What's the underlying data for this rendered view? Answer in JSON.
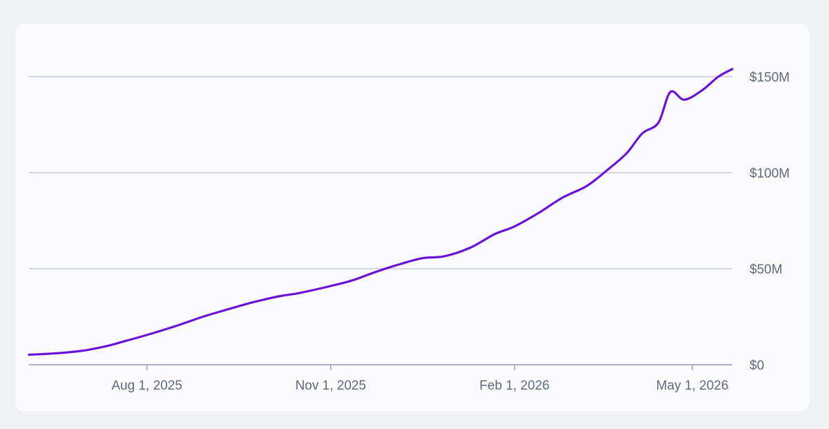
{
  "chart_data": {
    "type": "line",
    "title": "",
    "xlabel": "",
    "ylabel": "",
    "grid": true,
    "y_axis_position": "right",
    "ylim": [
      0,
      150000000
    ],
    "xlim": [
      "2025-06-03",
      "2026-05-21"
    ],
    "y_ticks": [
      {
        "value": 0,
        "label": "$0"
      },
      {
        "value": 50000000,
        "label": "$50M"
      },
      {
        "value": 100000000,
        "label": "$100M"
      },
      {
        "value": 150000000,
        "label": "$150M"
      }
    ],
    "x_ticks": [
      {
        "value": "2025-08-01",
        "label": "Aug 1, 2025"
      },
      {
        "value": "2025-11-01",
        "label": "Nov 1, 2025"
      },
      {
        "value": "2026-02-01",
        "label": "Feb 1, 2026"
      },
      {
        "value": "2026-05-01",
        "label": "May 1, 2026"
      }
    ],
    "series": [
      {
        "color": "#6a12d8",
        "points": [
          [
            "2025-06-03",
            5200000
          ],
          [
            "2025-06-17",
            6000000
          ],
          [
            "2025-06-29",
            7200000
          ],
          [
            "2025-07-11",
            9500000
          ],
          [
            "2025-07-20",
            12000000
          ],
          [
            "2025-08-01",
            15500000
          ],
          [
            "2025-08-15",
            20000000
          ],
          [
            "2025-08-29",
            25000000
          ],
          [
            "2025-09-11",
            29000000
          ],
          [
            "2025-09-23",
            32500000
          ],
          [
            "2025-10-06",
            35600000
          ],
          [
            "2025-10-17",
            37500000
          ],
          [
            "2025-11-01",
            41000000
          ],
          [
            "2025-11-12",
            44000000
          ],
          [
            "2025-11-24",
            48500000
          ],
          [
            "2025-12-06",
            52500000
          ],
          [
            "2025-12-17",
            55500000
          ],
          [
            "2025-12-28",
            56500000
          ],
          [
            "2026-01-10",
            61000000
          ],
          [
            "2026-01-22",
            68000000
          ],
          [
            "2026-02-01",
            72000000
          ],
          [
            "2026-02-13",
            79000000
          ],
          [
            "2026-02-25",
            87000000
          ],
          [
            "2026-03-09",
            93000000
          ],
          [
            "2026-03-19",
            101000000
          ],
          [
            "2026-03-29",
            110000000
          ],
          [
            "2026-04-06",
            120500000
          ],
          [
            "2026-04-14",
            126000000
          ],
          [
            "2026-04-20",
            142000000
          ],
          [
            "2026-04-27",
            138000000
          ],
          [
            "2026-05-06",
            143000000
          ],
          [
            "2026-05-14",
            150000000
          ],
          [
            "2026-05-21",
            154000000
          ]
        ]
      }
    ]
  }
}
